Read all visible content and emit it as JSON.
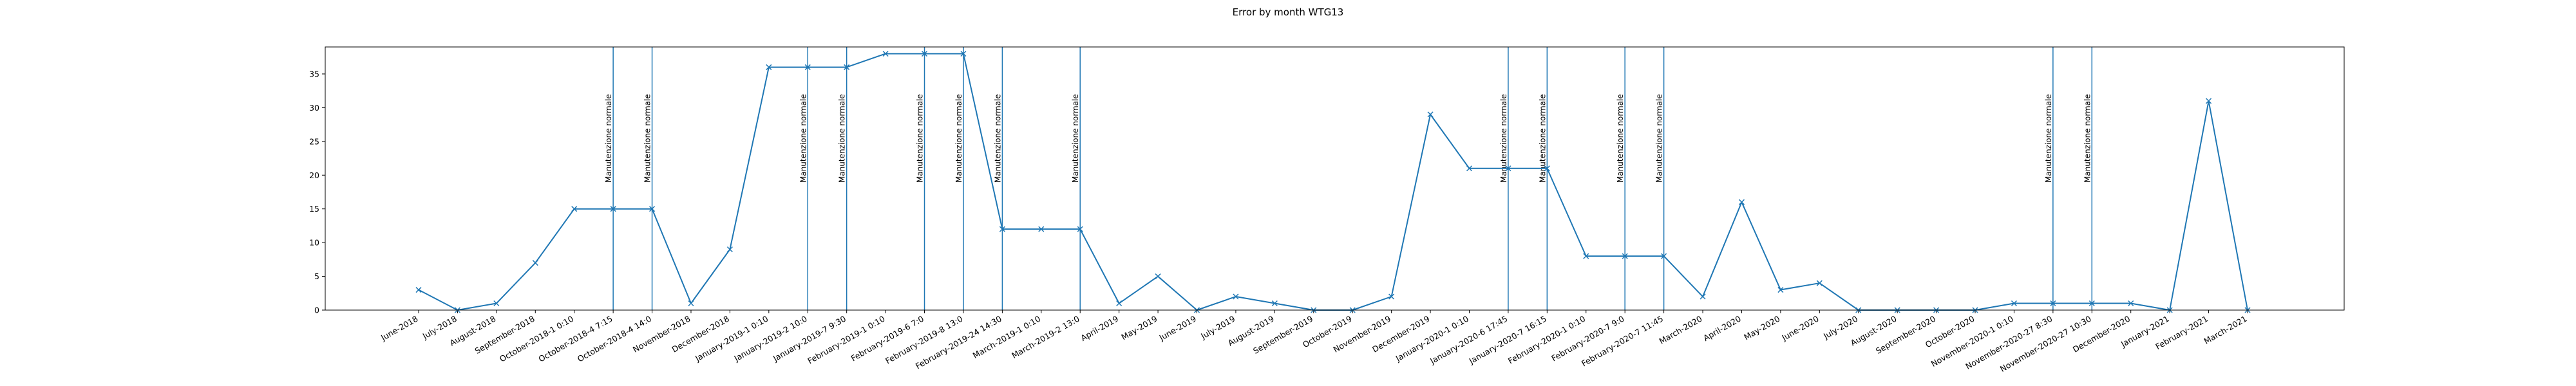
{
  "chart_data": {
    "type": "line",
    "title": "Error by month WTG13",
    "xlabel": "",
    "ylabel": "",
    "ylim": [
      0,
      39
    ],
    "yticks": [
      0,
      5,
      10,
      15,
      20,
      25,
      30,
      35
    ],
    "grid": false,
    "legend": "none",
    "line_color": "#1f77b4",
    "marker": "x",
    "categories": [
      "June-2018",
      "July-2018",
      "August-2018",
      "September-2018",
      "October-2018-1 0:10",
      "October-2018-4 7:15",
      "October-2018-4 14:0",
      "November-2018",
      "December-2018",
      "January-2019-1 0:10",
      "January-2019-2 10:0",
      "January-2019-7 9:30",
      "February-2019-1 0:10",
      "February-2019-6 7:0",
      "February-2019-8 13:0",
      "February-2019-24 14:30",
      "March-2019-1 0:10",
      "March-2019-2 13:0",
      "April-2019",
      "May-2019",
      "June-2019",
      "July-2019",
      "August-2019",
      "September-2019",
      "October-2019",
      "November-2019",
      "December-2019",
      "January-2020-1 0:10",
      "January-2020-6 17:45",
      "January-2020-7 16:15",
      "February-2020-1 0:10",
      "February-2020-7 9:0",
      "February-2020-7 11:45",
      "March-2020",
      "April-2020",
      "May-2020",
      "June-2020",
      "July-2020",
      "August-2020",
      "September-2020",
      "October-2020",
      "November-2020-1 0:10",
      "November-2020-27 8:30",
      "November-2020-27 10:30",
      "December-2020",
      "January-2021",
      "February-2021",
      "March-2021"
    ],
    "values": [
      3,
      0,
      1,
      7,
      15,
      15,
      15,
      1,
      9,
      36,
      36,
      36,
      38,
      38,
      38,
      12,
      12,
      12,
      1,
      5,
      0,
      2,
      1,
      0,
      0,
      2,
      29,
      21,
      21,
      21,
      8,
      8,
      8,
      2,
      16,
      3,
      4,
      0,
      0,
      0,
      0,
      1,
      1,
      1,
      1,
      0,
      31,
      0
    ],
    "annotations": [
      {
        "x_index": 5,
        "text": "Manutenzione normale"
      },
      {
        "x_index": 6,
        "text": "Manutenzione normale"
      },
      {
        "x_index": 10,
        "text": "Manutenzione normale"
      },
      {
        "x_index": 11,
        "text": "Manutenzione normale"
      },
      {
        "x_index": 13,
        "text": "Manutenzione normale"
      },
      {
        "x_index": 14,
        "text": "Manutenzione normale"
      },
      {
        "x_index": 15,
        "text": "Manutenzione normale"
      },
      {
        "x_index": 17,
        "text": "Manutenzione normale"
      },
      {
        "x_index": 28,
        "text": "Manutenzione normale"
      },
      {
        "x_index": 29,
        "text": "Manutenzione normale"
      },
      {
        "x_index": 31,
        "text": "Manutenzione normale"
      },
      {
        "x_index": 32,
        "text": "Manutenzione normale"
      },
      {
        "x_index": 42,
        "text": "Manutenzione normale"
      },
      {
        "x_index": 43,
        "text": "Manutenzione normale"
      }
    ]
  }
}
